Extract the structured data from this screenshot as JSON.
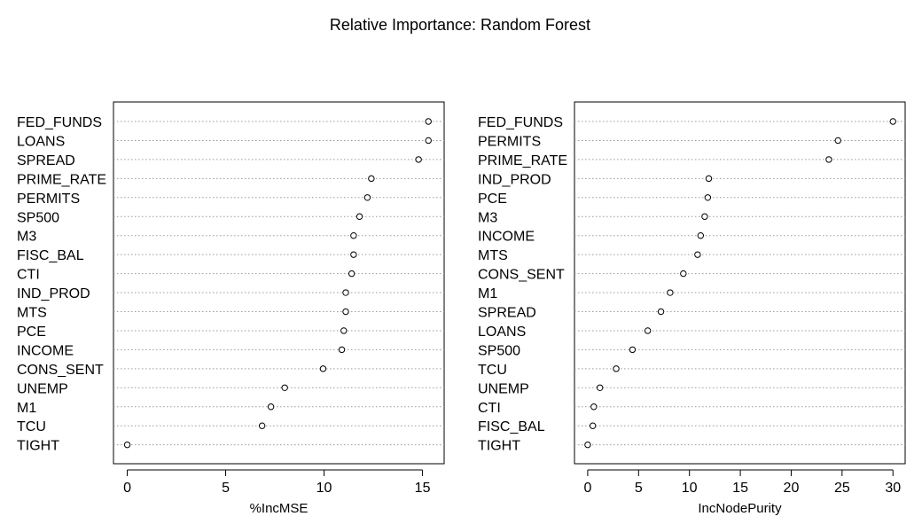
{
  "page": {
    "title": "Relative Importance: Random Forest"
  },
  "chart_data": [
    {
      "type": "scatter",
      "subtype": "dotchart",
      "xlabel": "%IncMSE",
      "xlim": [
        -0.7,
        16.1
      ],
      "xticks": [
        0,
        5,
        10,
        15
      ],
      "grid": "dotted horizontal",
      "categories": [
        "FED_FUNDS",
        "LOANS",
        "SPREAD",
        "PRIME_RATE",
        "PERMITS",
        "SP500",
        "M3",
        "FISC_BAL",
        "CTI",
        "IND_PROD",
        "MTS",
        "PCE",
        "INCOME",
        "CONS_SENT",
        "UNEMP",
        "M1",
        "TCU",
        "TIGHT"
      ],
      "values": [
        15.3,
        15.3,
        14.8,
        12.4,
        12.2,
        11.8,
        11.5,
        11.5,
        11.4,
        11.1,
        11.1,
        11.0,
        10.9,
        9.95,
        8.0,
        7.3,
        6.85,
        0.0
      ]
    },
    {
      "type": "scatter",
      "subtype": "dotchart",
      "xlabel": "IncNodePurity",
      "xlim": [
        -1.3,
        31.2
      ],
      "xticks": [
        0,
        5,
        10,
        15,
        20,
        25,
        30
      ],
      "grid": "dotted horizontal",
      "categories": [
        "FED_FUNDS",
        "PERMITS",
        "PRIME_RATE",
        "IND_PROD",
        "PCE",
        "M3",
        "INCOME",
        "MTS",
        "CONS_SENT",
        "M1",
        "SPREAD",
        "LOANS",
        "SP500",
        "TCU",
        "UNEMP",
        "CTI",
        "FISC_BAL",
        "TIGHT"
      ],
      "values": [
        30.0,
        24.6,
        23.7,
        11.9,
        11.8,
        11.5,
        11.1,
        10.8,
        9.4,
        8.1,
        7.2,
        5.9,
        4.4,
        2.8,
        1.2,
        0.6,
        0.5,
        0.0
      ]
    }
  ]
}
